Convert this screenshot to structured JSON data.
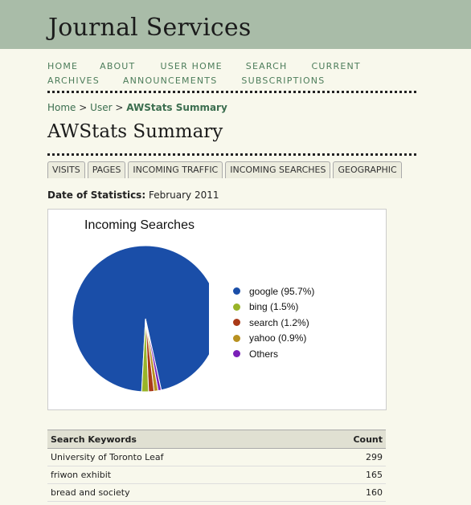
{
  "site": {
    "title": "Journal Services"
  },
  "nav": [
    {
      "label": "HOME",
      "name": "nav-home"
    },
    {
      "label": "ABOUT",
      "name": "nav-about"
    },
    {
      "label": "USER HOME",
      "name": "nav-user-home"
    },
    {
      "label": "SEARCH",
      "name": "nav-search"
    },
    {
      "label": "CURRENT",
      "name": "nav-current"
    },
    {
      "label": "ARCHIVES",
      "name": "nav-archives"
    },
    {
      "label": "ANNOUNCEMENTS",
      "name": "nav-announcements"
    },
    {
      "label": "SUBSCRIPTIONS",
      "name": "nav-subscriptions"
    }
  ],
  "breadcrumb": {
    "home": "Home",
    "sep": ">",
    "user": "User",
    "current": "AWStats Summary"
  },
  "page_title": "AWStats Summary",
  "tabs": [
    "VISITS",
    "PAGES",
    "INCOMING TRAFFIC",
    "INCOMING SEARCHES",
    "GEOGRAPHIC"
  ],
  "date": {
    "label": "Date of Statistics:",
    "value": "February 2011"
  },
  "chart_data": {
    "type": "pie",
    "title": "Incoming Searches",
    "slices": [
      {
        "label": "google (95.7%)",
        "value": 95.7,
        "color": "#1a4ea8"
      },
      {
        "label": "bing (1.5%)",
        "value": 1.5,
        "color": "#99b428"
      },
      {
        "label": "search (1.2%)",
        "value": 1.2,
        "color": "#aa3a18"
      },
      {
        "label": "yahoo (0.9%)",
        "value": 0.9,
        "color": "#b89120"
      },
      {
        "label": "Others",
        "value": 0.7,
        "color": "#7a20b8"
      }
    ],
    "legend_position": "right"
  },
  "keywords_table": {
    "headers": [
      "Search Keywords",
      "Count"
    ],
    "rows": [
      [
        "University of Toronto Leaf",
        "299"
      ],
      [
        "friwon exhibit",
        "165"
      ],
      [
        "bread and society",
        "160"
      ]
    ]
  }
}
